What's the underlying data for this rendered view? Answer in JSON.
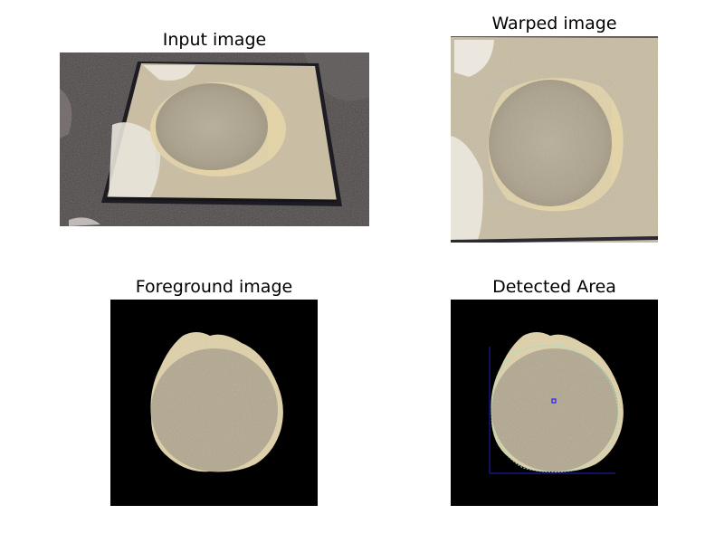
{
  "panels": [
    {
      "title": "Input image",
      "image": "input-image"
    },
    {
      "title": "Warped image",
      "image": "warped-image"
    },
    {
      "title": "Foreground image",
      "image": "foreground-image"
    },
    {
      "title": "Detected Area",
      "image": "detected-area-image"
    }
  ],
  "colors": {
    "asphalt": "#4a4444",
    "plate": "#c9bea4",
    "plate_frame": "#1c1c22",
    "concrete": "#b3a88f",
    "concrete_rim": "#e2d3a9",
    "mask_background": "#000000",
    "bounding_box": "#1a1aa0",
    "centroid": "#2020ff",
    "contour": "#9ce0c8"
  }
}
